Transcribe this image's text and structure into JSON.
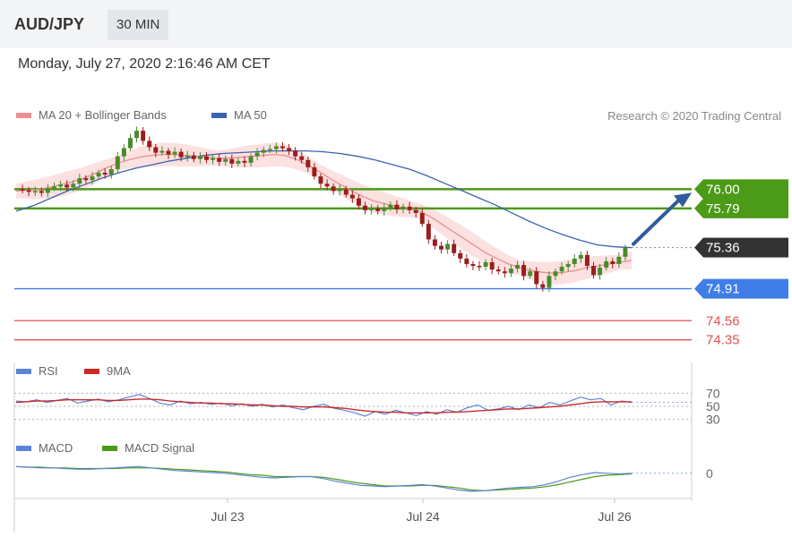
{
  "header": {
    "pair": "AUD/JPY",
    "timeframe": "30 MIN"
  },
  "date_line": "Monday, July 27, 2020 2:16:46 AM CET",
  "research": "Research © 2020 Trading Central",
  "legends": {
    "ma20": "MA 20 + Bollinger Bands",
    "ma50": "MA 50",
    "rsi": "RSI",
    "rsi_ma": "9MA",
    "macd": "MACD",
    "macd_signal": "MACD Signal"
  },
  "colors": {
    "ma20": "#ef8f8f",
    "band": "#fbdada",
    "ma50": "#3b63b0",
    "candle_up": "#4a8a2c",
    "candle_down": "#9b1c1c",
    "resistance": "#4b9a18",
    "support": "#3f7ee8",
    "support2": "#e05252",
    "current": "#333333",
    "arrow": "#2f5c9c",
    "rsi": "#5a84d6",
    "rsi_ma": "#cc2a2a",
    "macd": "#5a84d6",
    "macd_signal": "#4b9a18"
  },
  "chart_data": [
    {
      "type": "candlestick",
      "title": "AUD/JPY",
      "ylim": [
        74.2,
        76.7
      ],
      "levels": [
        {
          "name": "resistance-1",
          "value": 76.0,
          "label": "76.00",
          "kind": "resistance"
        },
        {
          "name": "resistance-2",
          "value": 75.79,
          "label": "75.79",
          "kind": "resistance"
        },
        {
          "name": "current",
          "value": 75.36,
          "label": "75.36",
          "kind": "current"
        },
        {
          "name": "support-1",
          "value": 74.91,
          "label": "74.91",
          "kind": "support"
        },
        {
          "name": "support-2",
          "value": 74.56,
          "label": "74.56",
          "kind": "support2"
        },
        {
          "name": "support-3",
          "value": 74.35,
          "label": "74.35",
          "kind": "support2"
        }
      ],
      "x_ticks": [
        "Jul 23",
        "Jul 24",
        "Jul 26"
      ],
      "close_path": [
        76.0,
        75.99,
        75.97,
        75.98,
        75.96,
        76.01,
        76.03,
        76.05,
        76.02,
        76.06,
        76.12,
        76.1,
        76.14,
        76.18,
        76.16,
        76.22,
        76.36,
        76.45,
        76.56,
        76.64,
        76.53,
        76.46,
        76.4,
        76.42,
        76.38,
        76.41,
        76.35,
        76.37,
        76.33,
        76.36,
        76.32,
        76.34,
        76.3,
        76.33,
        76.28,
        76.31,
        76.29,
        76.36,
        76.4,
        76.43,
        76.44,
        76.47,
        76.45,
        76.42,
        76.36,
        76.32,
        76.24,
        76.14,
        76.06,
        76.03,
        75.98,
        76.0,
        75.94,
        75.9,
        75.82,
        75.77,
        75.79,
        75.76,
        75.8,
        75.83,
        75.78,
        75.81,
        75.77,
        75.74,
        75.62,
        75.45,
        75.38,
        75.34,
        75.4,
        75.3,
        75.24,
        75.18,
        75.16,
        75.15,
        75.2,
        75.12,
        75.1,
        75.08,
        75.13,
        75.17,
        75.05,
        75.1,
        74.96,
        74.92,
        75.05,
        75.1,
        75.15,
        75.18,
        75.24,
        75.28,
        75.16,
        75.06,
        75.14,
        75.21,
        75.18,
        75.26,
        75.36
      ],
      "ma20_path": [
        75.98,
        75.99,
        76.0,
        76.02,
        76.05,
        76.08,
        76.12,
        76.17,
        76.23,
        76.28,
        76.32,
        76.35,
        76.37,
        76.38,
        76.38,
        76.37,
        76.36,
        76.35,
        76.34,
        76.34,
        76.35,
        76.36,
        76.37,
        76.38,
        76.37,
        76.33,
        76.27,
        76.2,
        76.12,
        76.05,
        75.98,
        75.92,
        75.87,
        75.84,
        75.81,
        75.79,
        75.76,
        75.7,
        75.62,
        75.54,
        75.46,
        75.38,
        75.3,
        75.24,
        75.18,
        75.14,
        75.11,
        75.09,
        75.08,
        75.09,
        75.11,
        75.14,
        75.16,
        75.18,
        75.2,
        75.22
      ],
      "ma50_path": [
        75.76,
        75.82,
        75.9,
        75.98,
        76.05,
        76.12,
        76.18,
        76.23,
        76.27,
        76.31,
        76.34,
        76.37,
        76.39,
        76.4,
        76.41,
        76.42,
        76.42,
        76.42,
        76.41,
        76.39,
        76.36,
        76.32,
        76.27,
        76.22,
        76.15,
        76.07,
        75.99,
        75.91,
        75.83,
        75.74,
        75.65,
        75.57,
        75.5,
        75.44,
        75.39,
        75.37,
        75.36
      ]
    },
    {
      "type": "line",
      "title": "RSI",
      "ylim": [
        20,
        80
      ],
      "y_ticks": [
        70,
        50,
        30
      ],
      "series": [
        {
          "name": "RSI",
          "values": [
            58,
            57,
            60,
            56,
            59,
            62,
            55,
            58,
            61,
            57,
            60,
            64,
            68,
            62,
            55,
            52,
            58,
            54,
            56,
            53,
            55,
            51,
            54,
            50,
            53,
            49,
            52,
            48,
            45,
            50,
            53,
            47,
            44,
            40,
            35,
            42,
            38,
            44,
            40,
            36,
            42,
            38,
            45,
            41,
            48,
            52,
            44,
            46,
            50,
            45,
            52,
            48,
            56,
            52,
            58,
            64,
            60,
            62,
            52,
            58,
            56
          ]
        },
        {
          "name": "9MA",
          "values": [
            56,
            57,
            58,
            58,
            59,
            60,
            60,
            60,
            60,
            59,
            59,
            60,
            61,
            61,
            60,
            58,
            57,
            56,
            55,
            55,
            54,
            54,
            53,
            52,
            52,
            51,
            50,
            50,
            49,
            49,
            49,
            48,
            47,
            45,
            43,
            42,
            41,
            41,
            40,
            40,
            40,
            40,
            41,
            41,
            42,
            43,
            44,
            45,
            46,
            46,
            47,
            48,
            49,
            50,
            52,
            54,
            56,
            57,
            57,
            57,
            57
          ]
        }
      ]
    },
    {
      "type": "line",
      "title": "MACD",
      "ylim": [
        -0.35,
        0.25
      ],
      "y_ticks": [
        0
      ],
      "series": [
        {
          "name": "MACD",
          "values": [
            0.1,
            0.09,
            0.08,
            0.08,
            0.07,
            0.06,
            0.06,
            0.07,
            0.08,
            0.09,
            0.1,
            0.08,
            0.06,
            0.04,
            0.03,
            0.02,
            0.01,
            0.0,
            -0.02,
            -0.04,
            -0.06,
            -0.07,
            -0.06,
            -0.05,
            -0.05,
            -0.08,
            -0.12,
            -0.15,
            -0.18,
            -0.19,
            -0.2,
            -0.19,
            -0.18,
            -0.17,
            -0.19,
            -0.22,
            -0.25,
            -0.27,
            -0.26,
            -0.24,
            -0.22,
            -0.21,
            -0.2,
            -0.17,
            -0.12,
            -0.06,
            -0.02,
            0.01,
            0.0,
            -0.01,
            0.0
          ]
        },
        {
          "name": "MACD Signal",
          "values": [
            0.1,
            0.09,
            0.09,
            0.08,
            0.08,
            0.07,
            0.07,
            0.07,
            0.07,
            0.08,
            0.08,
            0.08,
            0.07,
            0.06,
            0.05,
            0.04,
            0.03,
            0.02,
            0.0,
            -0.02,
            -0.03,
            -0.05,
            -0.05,
            -0.05,
            -0.05,
            -0.06,
            -0.09,
            -0.12,
            -0.15,
            -0.17,
            -0.19,
            -0.19,
            -0.19,
            -0.18,
            -0.18,
            -0.2,
            -0.22,
            -0.25,
            -0.26,
            -0.25,
            -0.24,
            -0.23,
            -0.22,
            -0.2,
            -0.17,
            -0.13,
            -0.09,
            -0.05,
            -0.03,
            -0.02,
            -0.01
          ]
        }
      ]
    }
  ]
}
